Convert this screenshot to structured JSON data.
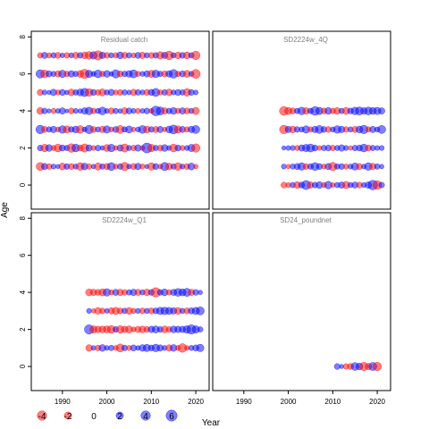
{
  "chart_data": {
    "type": "scatter",
    "xlabel": "Year",
    "ylabel": "Age",
    "xlim": [
      1983,
      2023
    ],
    "ylim": [
      -1.3,
      8.3
    ],
    "x_ticks": [
      1990,
      2000,
      2010,
      2020
    ],
    "y_ticks": [
      0,
      2,
      4,
      6,
      8
    ],
    "grid": false,
    "legend_placement": "bottom-left",
    "colors": {
      "positive": "#0000ff",
      "negative": "#ff0000"
    },
    "legend": [
      {
        "label": "-4",
        "value": -4
      },
      {
        "label": "-2",
        "value": -2
      },
      {
        "label": "0",
        "value": 0
      },
      {
        "label": "2",
        "value": 2
      },
      {
        "label": "4",
        "value": 4
      },
      {
        "label": "6",
        "value": 6
      }
    ],
    "panels": [
      {
        "title": "Residual catch",
        "years": [
          1985,
          2020
        ],
        "ages": [
          1,
          2,
          3,
          4,
          5,
          6,
          7
        ],
        "residuals": [
          [
            -2.6,
            1.3,
            -0.9,
            0.6,
            0.3,
            -1.7,
            0.9,
            -1.1,
            0.7,
            -2.4,
            1.6,
            -0.8,
            0.4,
            -1.9,
            0.8,
            -1.3,
            2.5,
            -0.6,
            0.9,
            -2.9,
            0.5,
            -1.2,
            1.4,
            -0.7,
            0.3,
            -2.1,
            1.1,
            -0.5,
            2.7,
            -1.6,
            0.8,
            -2.3,
            0.6,
            -1.0,
            1.7,
            -0.4
          ],
          [
            0.9,
            -2.2,
            1.6,
            -0.7,
            -2.4,
            1.2,
            0.8,
            -3.1,
            2.4,
            -1.1,
            -2.8,
            1.3,
            -0.6,
            0.9,
            0.4,
            -1.8,
            2.2,
            -0.5,
            1.3,
            -2.7,
            0.7,
            -0.9,
            1.4,
            -0.6,
            4.6,
            -2.2,
            0.8,
            -1.0,
            1.6,
            0.5,
            -2.4,
            1.1,
            -0.7,
            0.6,
            1.9,
            -2.9
          ],
          [
            3.1,
            -1.2,
            0.8,
            1.4,
            -0.6,
            2.2,
            -1.9,
            0.9,
            1.6,
            -2.3,
            0.5,
            3.0,
            -1.1,
            0.7,
            -1.4,
            2.0,
            -0.6,
            1.1,
            -2.6,
            0.8,
            1.8,
            -0.5,
            0.6,
            2.4,
            -1.7,
            0.9,
            -1.2,
            1.3,
            -0.4,
            1.7,
            3.4,
            -2.0,
            1.2,
            -0.8,
            1.4,
            2.6
          ],
          [
            -1.6,
            0.9,
            0.3,
            -0.7,
            0.5,
            1.3,
            0.2,
            -1.1,
            0.6,
            0.4,
            1.4,
            2.2,
            -0.9,
            0.7,
            2.4,
            0.5,
            -1.2,
            0.8,
            0.4,
            -1.5,
            1.1,
            0.6,
            -0.7,
            0.5,
            1.0,
            -0.6,
            4.2,
            2.6,
            -1.4,
            0.9,
            1.6,
            -0.8,
            1.3,
            -1.1,
            0.7,
            -1.9
          ],
          [
            -1.1,
            0.6,
            0.3,
            1.4,
            -0.7,
            1.2,
            0.4,
            -1.6,
            0.8,
            1.7,
            2.8,
            -2.3,
            1.1,
            -0.9,
            -1.8,
            0.7,
            1.3,
            -0.6,
            -1.0,
            0.8,
            0.5,
            -1.4,
            0.9,
            0.6,
            -1.1,
            1.2,
            2.6,
            -0.7,
            0.9,
            -1.5,
            0.6,
            1.1,
            0.8,
            -2.2,
            1.0,
            0.5
          ],
          [
            2.9,
            -2.4,
            1.2,
            0.7,
            -1.3,
            2.1,
            -0.9,
            1.4,
            0.8,
            -1.6,
            -3.8,
            1.9,
            0.6,
            2.4,
            -0.8,
            1.6,
            0.4,
            2.8,
            -1.1,
            0.9,
            1.5,
            2.6,
            -0.7,
            0.6,
            1.3,
            -1.9,
            2.2,
            0.8,
            -1.2,
            1.4,
            3.2,
            -0.8,
            1.1,
            -1.7,
            0.7,
            -3.4
          ],
          [
            -0.8,
            1.2,
            -0.7,
            0.8,
            -1.1,
            0.5,
            -0.9,
            0.6,
            -1.3,
            0.9,
            -1.6,
            -2.3,
            2.1,
            -3.8,
            1.4,
            -1.0,
            0.7,
            -0.8,
            1.6,
            -1.2,
            0.8,
            -0.6,
            1.1,
            -1.4,
            0.7,
            -1.0,
            0.9,
            -2.0,
            1.3,
            -3.2,
            0.7,
            -1.5,
            1.0,
            -1.7,
            0.8,
            -3.0
          ]
        ]
      },
      {
        "title": "SD2224w_4Q",
        "years": [
          1999,
          2021
        ],
        "ages": [
          0,
          1,
          2,
          3,
          4
        ],
        "residuals": [
          [
            -1.0,
            -0.6,
            0.8,
            -1.6,
            1.1,
            3.6,
            -1.4,
            0.9,
            1.6,
            -0.7,
            2.2,
            -0.5,
            0.8,
            1.3,
            -1.9,
            0.7,
            1.2,
            -1.0,
            0.6,
            1.4,
            4.1,
            -3.2,
            0.9
          ],
          [
            0.6,
            -0.4,
            0.7,
            1.2,
            2.1,
            -1.0,
            0.9,
            2.4,
            1.1,
            -0.6,
            1.3,
            -2.9,
            0.8,
            1.0,
            -0.7,
            0.6,
            1.9,
            -1.2,
            0.5,
            2.2,
            -1.4,
            0.8,
            0.4
          ],
          [
            0.3,
            0.5,
            0.6,
            -0.7,
            1.3,
            2.0,
            2.6,
            1.1,
            -0.5,
            0.8,
            1.0,
            -0.9,
            0.7,
            1.4,
            0.6,
            -0.4,
            0.9,
            1.1,
            2.4,
            -1.2,
            0.8,
            0.5,
            0.6
          ],
          [
            -3.1,
            1.3,
            -1.6,
            0.9,
            0.7,
            2.0,
            -0.8,
            1.4,
            2.5,
            1.0,
            -1.1,
            0.6,
            2.2,
            1.4,
            -0.9,
            0.7,
            -1.2,
            1.6,
            2.9,
            -0.8,
            1.3,
            0.6,
            2.6
          ],
          [
            -3.3,
            -1.9,
            -1.2,
            0.8,
            2.2,
            -1.5,
            0.9,
            3.2,
            2.0,
            -1.1,
            1.6,
            -0.9,
            -1.6,
            0.8,
            -1.8,
            1.0,
            2.2,
            2.6,
            1.5,
            2.4,
            1.7,
            2.0,
            1.3
          ]
        ]
      },
      {
        "title": "SD2224w_Q1",
        "years": [
          1996,
          2021
        ],
        "ages": [
          1,
          2,
          3,
          4
        ],
        "residuals": [
          [
            -1.5,
            0.5,
            -0.9,
            1.6,
            0.5,
            0.8,
            -0.6,
            -2.6,
            0.9,
            -0.7,
            1.2,
            0.5,
            1.5,
            2.0,
            1.0,
            2.2,
            1.3,
            0.6,
            -1.4,
            1.6,
            -0.7,
            -3.2,
            -0.5,
            0.7,
            1.2,
            2.1
          ],
          [
            3.8,
            -2.0,
            -1.4,
            -1.6,
            -1.8,
            -2.4,
            0.9,
            -2.2,
            -1.4,
            -1.8,
            -0.6,
            -1.2,
            -1.6,
            -1.0,
            1.4,
            1.8,
            0.9,
            -1.7,
            -0.9,
            1.6,
            1.4,
            1.3,
            2.2,
            3.8,
            2.0,
            0.8
          ],
          [
            0.6,
            -0.4,
            -1.5,
            -0.9,
            0.5,
            -1.3,
            -1.9,
            -1.1,
            0.8,
            -1.6,
            -0.7,
            0.6,
            -1.0,
            0.7,
            -1.2,
            1.0,
            2.0,
            2.2,
            1.8,
            1.4,
            -1.6,
            0.7,
            -1.1,
            1.2,
            1.9,
            2.6
          ],
          [
            -1.7,
            -1.4,
            -1.1,
            -1.8,
            2.1,
            -0.7,
            1.2,
            -1.4,
            -0.9,
            0.8,
            1.4,
            -1.2,
            0.7,
            -1.5,
            1.0,
            -4.0,
            0.9,
            1.6,
            -0.8,
            1.2,
            2.4,
            1.8,
            2.6,
            -1.3,
            1.0,
            0.4
          ]
        ]
      },
      {
        "title": "SD24_poundnet",
        "years": [
          2011,
          2020
        ],
        "ages": [
          0
        ],
        "residuals": [
          [
            1.0,
            0.3,
            -0.9,
            -1.1,
            2.4,
            1.6,
            -2.9,
            -1.4,
            2.6,
            -3.0
          ]
        ]
      }
    ]
  }
}
